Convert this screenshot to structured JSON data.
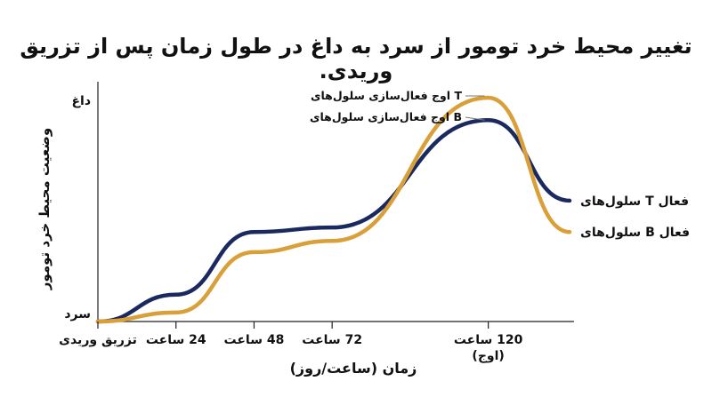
{
  "chart_data": {
    "type": "line",
    "title": "تغییر محیط خرد تومور از سرد به داغ در طول زمان پس از تزریق وریدی.",
    "xlabel": "زمان (ساعت/روز)",
    "ylabel": "وضعیت محیط خرد تومور",
    "y_tick_labels": {
      "top": "داغ",
      "bottom": "سرد"
    },
    "x_ticks": [
      {
        "x": 0,
        "label": "تزریق وریدی",
        "sublabel": ""
      },
      {
        "x": 24,
        "label": "24 ساعت",
        "sublabel": ""
      },
      {
        "x": 48,
        "label": "48 ساعت",
        "sublabel": ""
      },
      {
        "x": 72,
        "label": "72 ساعت",
        "sublabel": ""
      },
      {
        "x": 120,
        "label": "120 ساعت",
        "sublabel": "(اوج)"
      }
    ],
    "xlim": [
      0,
      145
    ],
    "ylim": [
      0,
      100
    ],
    "grid": false,
    "series": [
      {
        "name": "سلول‌های T فعال",
        "color": "#1b2a5e",
        "points": [
          [
            0,
            0
          ],
          [
            24,
            12
          ],
          [
            48,
            40
          ],
          [
            72,
            42
          ],
          [
            120,
            90
          ],
          [
            145,
            54
          ]
        ]
      },
      {
        "name": "سلول‌های B فعال",
        "color": "#d9a03a",
        "points": [
          [
            0,
            0
          ],
          [
            24,
            4
          ],
          [
            48,
            31
          ],
          [
            72,
            36
          ],
          [
            120,
            100
          ],
          [
            145,
            40
          ]
        ]
      }
    ],
    "annotations": [
      {
        "text": "اوج فعال‌سازی سلول‌های T",
        "series": 1
      },
      {
        "text": "اوج فعال‌سازی سلول‌های B",
        "series": 0
      }
    ]
  }
}
